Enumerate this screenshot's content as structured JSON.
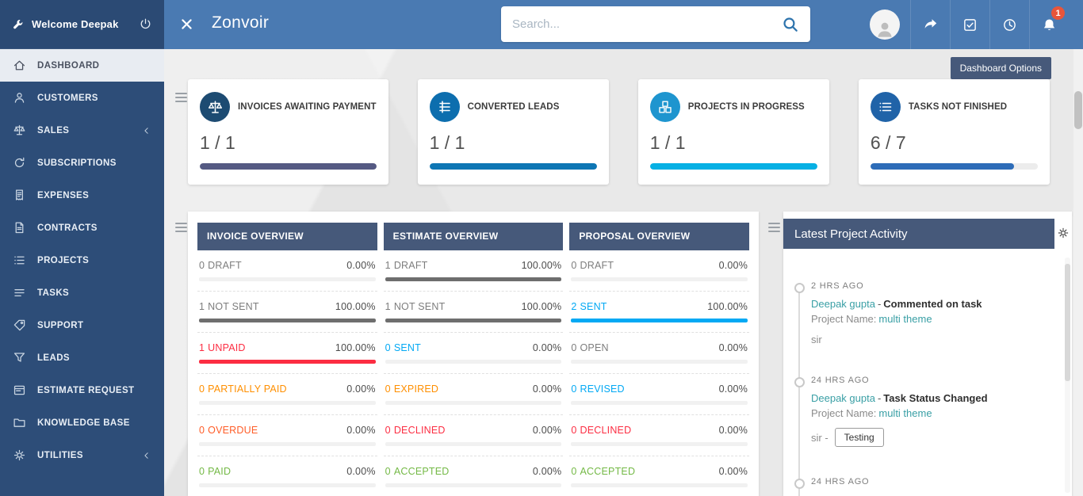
{
  "sidebar": {
    "welcome": "Welcome Deepak",
    "items": [
      {
        "label": "DASHBOARD",
        "icon": "home-icon",
        "active": true
      },
      {
        "label": "CUSTOMERS",
        "icon": "customers-icon"
      },
      {
        "label": "SALES",
        "icon": "sales-icon",
        "has_submenu": true
      },
      {
        "label": "SUBSCRIPTIONS",
        "icon": "subscriptions-icon"
      },
      {
        "label": "EXPENSES",
        "icon": "expenses-icon"
      },
      {
        "label": "CONTRACTS",
        "icon": "contracts-icon"
      },
      {
        "label": "PROJECTS",
        "icon": "projects-icon"
      },
      {
        "label": "TASKS",
        "icon": "tasks-icon"
      },
      {
        "label": "SUPPORT",
        "icon": "support-icon"
      },
      {
        "label": "LEADS",
        "icon": "leads-icon"
      },
      {
        "label": "ESTIMATE REQUEST",
        "icon": "estimate-request-icon"
      },
      {
        "label": "KNOWLEDGE BASE",
        "icon": "knowledge-base-icon"
      },
      {
        "label": "UTILITIES",
        "icon": "utilities-icon",
        "has_submenu": true
      }
    ]
  },
  "topbar": {
    "brand": "Zonvoir",
    "search_placeholder": "Search...",
    "notification_count": "1"
  },
  "dashboard": {
    "options_button": "Dashboard Options",
    "kpis": [
      {
        "title": "INVOICES AWAITING PAYMENT",
        "value": "1 / 1",
        "progress": 100,
        "bar_color": "#555a83",
        "icon": "scales-icon",
        "icon_bg": "#1d4b72"
      },
      {
        "title": "CONVERTED LEADS",
        "value": "1 / 1",
        "progress": 100,
        "bar_color": "#0e76b4",
        "icon": "bars-icon",
        "icon_bg": "#0d6eae"
      },
      {
        "title": "PROJECTS IN PROGRESS",
        "value": "1 / 1",
        "progress": 100,
        "bar_color": "#07b0e4",
        "icon": "cubes-icon",
        "icon_bg": "#1e95cf"
      },
      {
        "title": "TASKS NOT FINISHED",
        "value": "6 / 7",
        "progress": 86,
        "bar_color": "#2d6cb8",
        "icon": "list-icon",
        "icon_bg": "#2063a8"
      }
    ],
    "overviews": [
      {
        "title": "INVOICE OVERVIEW",
        "rows": [
          {
            "count": "0",
            "label": "DRAFT",
            "pct": "0.00%",
            "color": "#7d7d7d",
            "bar": 0,
            "bar_color": "#6e6e6e"
          },
          {
            "count": "1",
            "label": "NOT SENT",
            "pct": "100.00%",
            "color": "#7d7d7d",
            "bar": 100,
            "bar_color": "#6e6e6e"
          },
          {
            "count": "1",
            "label": "UNPAID",
            "pct": "100.00%",
            "color": "#fc2d42",
            "bar": 100,
            "bar_color": "#fc2d42"
          },
          {
            "count": "0",
            "label": "PARTIALLY PAID",
            "pct": "0.00%",
            "color": "#ff8f00",
            "bar": 0,
            "bar_color": "#ff8f00"
          },
          {
            "count": "0",
            "label": "OVERDUE",
            "pct": "0.00%",
            "color": "#ff5d28",
            "bar": 0,
            "bar_color": "#ff5d28"
          },
          {
            "count": "0",
            "label": "PAID",
            "pct": "0.00%",
            "color": "#74b946",
            "bar": 0,
            "bar_color": "#74b946"
          }
        ]
      },
      {
        "title": "ESTIMATE OVERVIEW",
        "rows": [
          {
            "count": "1",
            "label": "DRAFT",
            "pct": "100.00%",
            "color": "#7d7d7d",
            "bar": 100,
            "bar_color": "#6e6e6e"
          },
          {
            "count": "1",
            "label": "NOT SENT",
            "pct": "100.00%",
            "color": "#7d7d7d",
            "bar": 100,
            "bar_color": "#6e6e6e"
          },
          {
            "count": "0",
            "label": "SENT",
            "pct": "0.00%",
            "color": "#03a9f4",
            "bar": 0,
            "bar_color": "#03a9f4"
          },
          {
            "count": "0",
            "label": "EXPIRED",
            "pct": "0.00%",
            "color": "#ff8f00",
            "bar": 0,
            "bar_color": "#ff8f00"
          },
          {
            "count": "0",
            "label": "DECLINED",
            "pct": "0.00%",
            "color": "#fc2d42",
            "bar": 0,
            "bar_color": "#fc2d42"
          },
          {
            "count": "0",
            "label": "ACCEPTED",
            "pct": "0.00%",
            "color": "#74b946",
            "bar": 0,
            "bar_color": "#74b946"
          }
        ]
      },
      {
        "title": "PROPOSAL OVERVIEW",
        "rows": [
          {
            "count": "0",
            "label": "DRAFT",
            "pct": "0.00%",
            "color": "#7d7d7d",
            "bar": 0,
            "bar_color": "#6e6e6e"
          },
          {
            "count": "2",
            "label": "SENT",
            "pct": "100.00%",
            "color": "#03a9f4",
            "bar": 100,
            "bar_color": "#03a9f4"
          },
          {
            "count": "0",
            "label": "OPEN",
            "pct": "0.00%",
            "color": "#7d7d7d",
            "bar": 0,
            "bar_color": "#6e6e6e"
          },
          {
            "count": "0",
            "label": "REVISED",
            "pct": "0.00%",
            "color": "#03a9f4",
            "bar": 0,
            "bar_color": "#03a9f4"
          },
          {
            "count": "0",
            "label": "DECLINED",
            "pct": "0.00%",
            "color": "#fc2d42",
            "bar": 0,
            "bar_color": "#fc2d42"
          },
          {
            "count": "0",
            "label": "ACCEPTED",
            "pct": "0.00%",
            "color": "#74b946",
            "bar": 0,
            "bar_color": "#74b946"
          }
        ]
      }
    ],
    "activity": {
      "title": "Latest Project Activity",
      "items": [
        {
          "time": "2 HRS AGO",
          "who": "Deepak gupta",
          "sep": "-",
          "action": "Commented on task",
          "project_label": "Project Name:",
          "project": "multi theme",
          "note": "sir"
        },
        {
          "time": "24 HRS AGO",
          "who": "Deepak gupta",
          "sep": "-",
          "action": "Task Status Changed",
          "project_label": "Project Name:",
          "project": "multi theme",
          "note": "sir -",
          "tag": "Testing"
        },
        {
          "time": "24 HRS AGO"
        }
      ]
    }
  }
}
